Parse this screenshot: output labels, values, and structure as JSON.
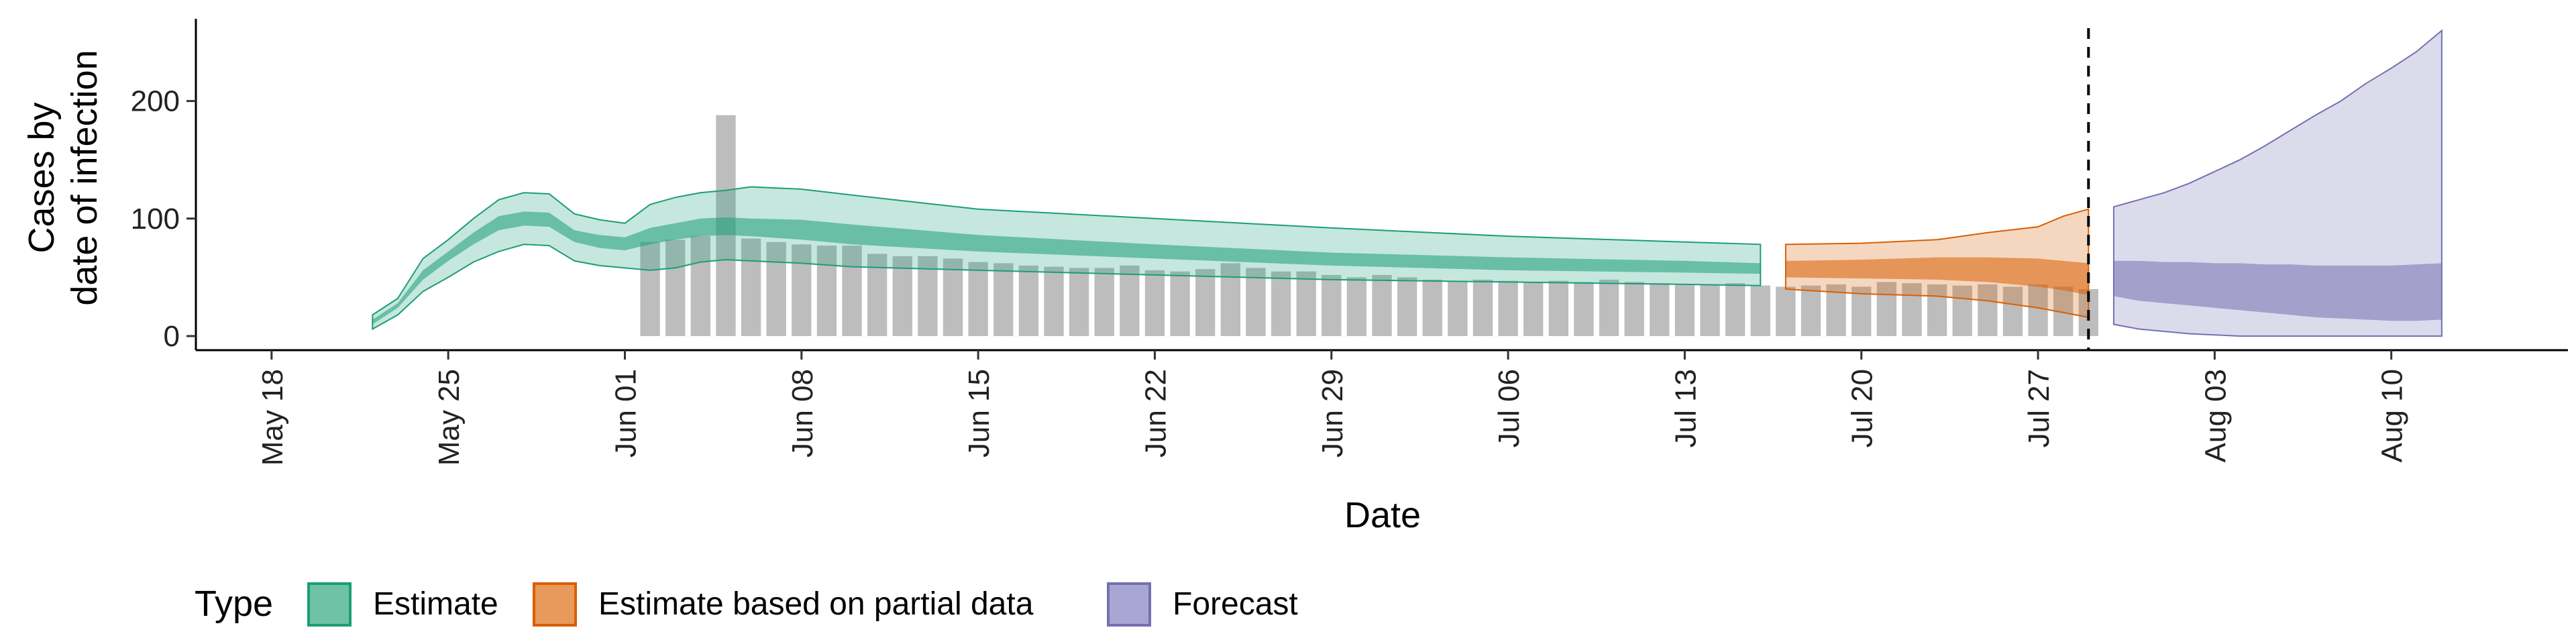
{
  "chart_data": {
    "type": "area",
    "title": "",
    "xlabel": "Date",
    "ylabel_lines": [
      "Cases by",
      "date of infection"
    ],
    "x_ticks": [
      "May 18",
      "May 25",
      "Jun 01",
      "Jun 08",
      "Jun 15",
      "Jun 22",
      "Jun 29",
      "Jul 06",
      "Jul 13",
      "Jul 20",
      "Jul 27",
      "Aug 03",
      "Aug 10"
    ],
    "x_start": "2020-05-15",
    "x_end": "2020-08-17",
    "y_ticks": [
      0,
      100,
      200
    ],
    "ylim": [
      -12,
      270
    ],
    "vline_date": "2020-07-29",
    "legend": {
      "title": "Type",
      "position": "bottom-left",
      "items": [
        {
          "label": "Estimate",
          "fill": "#1b9e77"
        },
        {
          "label": "Estimate based on partial data",
          "fill": "#d95f02"
        },
        {
          "label": "Forecast",
          "fill": "#7570b3"
        }
      ]
    },
    "colors": {
      "bars": "#bdbdbd",
      "estimate": "#1b9e77",
      "partial": "#d95f02",
      "forecast": "#7570b3"
    },
    "reported_cases": {
      "start_date": "2020-06-02",
      "values": [
        80,
        82,
        85,
        188,
        83,
        80,
        78,
        77,
        77,
        70,
        68,
        68,
        66,
        63,
        62,
        60,
        59,
        58,
        58,
        60,
        56,
        55,
        57,
        62,
        58,
        55,
        55,
        52,
        50,
        52,
        50,
        48,
        47,
        48,
        47,
        46,
        47,
        46,
        48,
        46,
        45,
        44,
        44,
        45,
        43,
        42,
        43,
        44,
        42,
        46,
        45,
        44,
        43,
        44,
        42,
        44,
        42,
        40
      ]
    },
    "series": [
      {
        "name": "Estimate",
        "dates": [
          "2020-05-22",
          "2020-05-23",
          "2020-05-24",
          "2020-05-25",
          "2020-05-26",
          "2020-05-27",
          "2020-05-28",
          "2020-05-29",
          "2020-05-30",
          "2020-05-31",
          "2020-06-01",
          "2020-06-02",
          "2020-06-03",
          "2020-06-04",
          "2020-06-05",
          "2020-06-06",
          "2020-06-08",
          "2020-06-10",
          "2020-06-15",
          "2020-06-22",
          "2020-06-29",
          "2020-07-06",
          "2020-07-13",
          "2020-07-16"
        ],
        "lower90": [
          6,
          18,
          38,
          50,
          63,
          72,
          78,
          77,
          64,
          60,
          58,
          56,
          58,
          63,
          65,
          64,
          62,
          59,
          56,
          52,
          48,
          46,
          44,
          43
        ],
        "upper90": [
          18,
          32,
          66,
          82,
          100,
          116,
          122,
          121,
          104,
          99,
          96,
          112,
          118,
          122,
          124,
          127,
          125,
          120,
          108,
          100,
          92,
          85,
          80,
          78
        ],
        "lower50": [
          10,
          24,
          48,
          64,
          78,
          90,
          94,
          93,
          80,
          75,
          73,
          78,
          82,
          85,
          86,
          85,
          82,
          78,
          72,
          66,
          60,
          56,
          54,
          53
        ],
        "upper50": [
          14,
          28,
          56,
          72,
          88,
          102,
          106,
          105,
          90,
          86,
          84,
          92,
          96,
          100,
          101,
          100,
          99,
          95,
          86,
          78,
          71,
          67,
          64,
          62
        ]
      },
      {
        "name": "Estimate based on partial data",
        "dates": [
          "2020-07-17",
          "2020-07-20",
          "2020-07-23",
          "2020-07-25",
          "2020-07-27",
          "2020-07-28",
          "2020-07-29"
        ],
        "lower90": [
          40,
          36,
          34,
          30,
          24,
          20,
          16
        ],
        "upper90": [
          78,
          79,
          82,
          88,
          93,
          102,
          108
        ],
        "lower50": [
          50,
          49,
          48,
          46,
          42,
          39,
          35
        ],
        "upper50": [
          64,
          65,
          67,
          67,
          66,
          64,
          62
        ]
      },
      {
        "name": "Forecast",
        "dates": [
          "2020-07-30",
          "2020-07-31",
          "2020-08-01",
          "2020-08-02",
          "2020-08-03",
          "2020-08-04",
          "2020-08-05",
          "2020-08-06",
          "2020-08-07",
          "2020-08-08",
          "2020-08-09",
          "2020-08-10",
          "2020-08-11",
          "2020-08-12"
        ],
        "lower90": [
          10,
          6,
          4,
          2,
          1,
          0,
          0,
          0,
          0,
          0,
          0,
          0,
          0,
          0
        ],
        "upper90": [
          110,
          116,
          122,
          130,
          140,
          150,
          162,
          175,
          188,
          200,
          215,
          228,
          242,
          260
        ],
        "lower50": [
          34,
          30,
          28,
          26,
          24,
          22,
          20,
          18,
          16,
          15,
          14,
          13,
          13,
          14
        ],
        "upper50": [
          64,
          64,
          63,
          63,
          62,
          62,
          61,
          61,
          60,
          60,
          60,
          60,
          61,
          62
        ]
      }
    ]
  }
}
